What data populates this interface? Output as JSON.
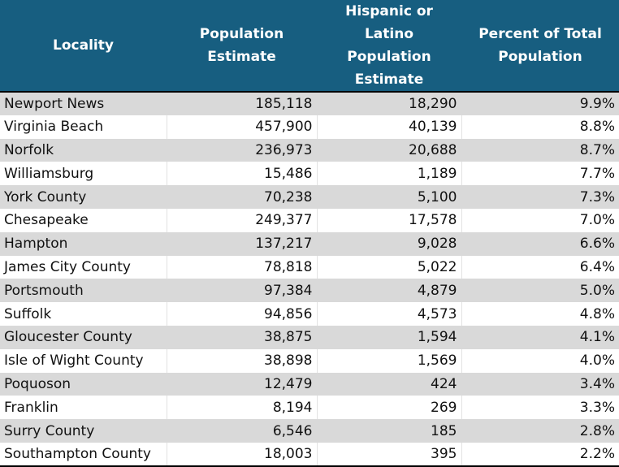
{
  "chart_data": {
    "type": "table",
    "columns": [
      "Locality",
      "Population Estimate",
      "Hispanic or Latino Population Estimate",
      "Percent of Total Population"
    ],
    "rows": [
      [
        "Newport News",
        "185,118",
        "18,290",
        "9.9%"
      ],
      [
        "Virginia Beach",
        "457,900",
        "40,139",
        "8.8%"
      ],
      [
        "Norfolk",
        "236,973",
        "20,688",
        "8.7%"
      ],
      [
        "Williamsburg",
        "15,486",
        "1,189",
        "7.7%"
      ],
      [
        "York County",
        "70,238",
        "5,100",
        "7.3%"
      ],
      [
        "Chesapeake",
        "249,377",
        "17,578",
        "7.0%"
      ],
      [
        "Hampton",
        "137,217",
        "9,028",
        "6.6%"
      ],
      [
        "James City County",
        "78,818",
        "5,022",
        "6.4%"
      ],
      [
        "Portsmouth",
        "97,384",
        "4,879",
        "5.0%"
      ],
      [
        "Suffolk",
        "94,856",
        "4,573",
        "4.8%"
      ],
      [
        "Gloucester County",
        "38,875",
        "1,594",
        "4.1%"
      ],
      [
        "Isle of Wight County",
        "38,898",
        "1,569",
        "4.0%"
      ],
      [
        "Poquoson",
        "12,479",
        "424",
        "3.4%"
      ],
      [
        "Franklin",
        "8,194",
        "269",
        "3.3%"
      ],
      [
        "Surry County",
        "6,546",
        "185",
        "2.8%"
      ],
      [
        "Southampton County",
        "18,003",
        "395",
        "2.2%"
      ]
    ],
    "colors": {
      "header_bg": "#175e80",
      "header_text": "#ffffff",
      "stripe": "#d9d9d9"
    }
  }
}
